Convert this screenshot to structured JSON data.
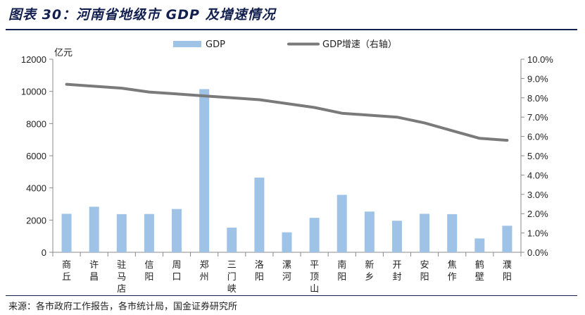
{
  "header": {
    "title": "图表 30：河南省地级市 GDP 及增速情况"
  },
  "footer": {
    "source": "来源：各市政府工作报告，各市统计局，国金证券研究所"
  },
  "colors": {
    "bar": "#9fc3e6",
    "line": "#7a7a7a",
    "title": "#13204f"
  },
  "chart_data": {
    "type": "bar",
    "y_unit_label": "亿元",
    "categories": [
      "商丘",
      "许昌",
      "驻马店",
      "信阳",
      "周口",
      "郑州",
      "三门峡",
      "洛阳",
      "漯河",
      "平顶山",
      "南阳",
      "新乡",
      "开封",
      "安阳",
      "焦作",
      "鹤壁",
      "濮阳"
    ],
    "series": [
      {
        "name": "GDP",
        "type": "bar",
        "axis": "left",
        "values": [
          2390,
          2830,
          2370,
          2380,
          2690,
          10140,
          1530,
          4640,
          1240,
          2140,
          3570,
          2530,
          1960,
          2390,
          2370,
          860,
          1650
        ]
      },
      {
        "name": "GDP增速（右轴）",
        "type": "line",
        "axis": "right",
        "values": [
          8.7,
          8.6,
          8.5,
          8.3,
          8.2,
          8.1,
          8.0,
          7.9,
          7.7,
          7.5,
          7.2,
          7.1,
          7.0,
          6.7,
          6.3,
          5.9,
          5.8
        ]
      }
    ],
    "y_left": {
      "min": 0,
      "max": 12000,
      "step": 2000,
      "ticks": [
        "0",
        "2000",
        "4000",
        "6000",
        "8000",
        "10000",
        "12000"
      ]
    },
    "y_right": {
      "min": 0,
      "max": 10.0,
      "step": 1.0,
      "ticks": [
        "0.0%",
        "1.0%",
        "2.0%",
        "3.0%",
        "4.0%",
        "5.0%",
        "6.0%",
        "7.0%",
        "8.0%",
        "9.0%",
        "10.0%"
      ]
    },
    "legend_position": "top-center",
    "grid": false
  }
}
